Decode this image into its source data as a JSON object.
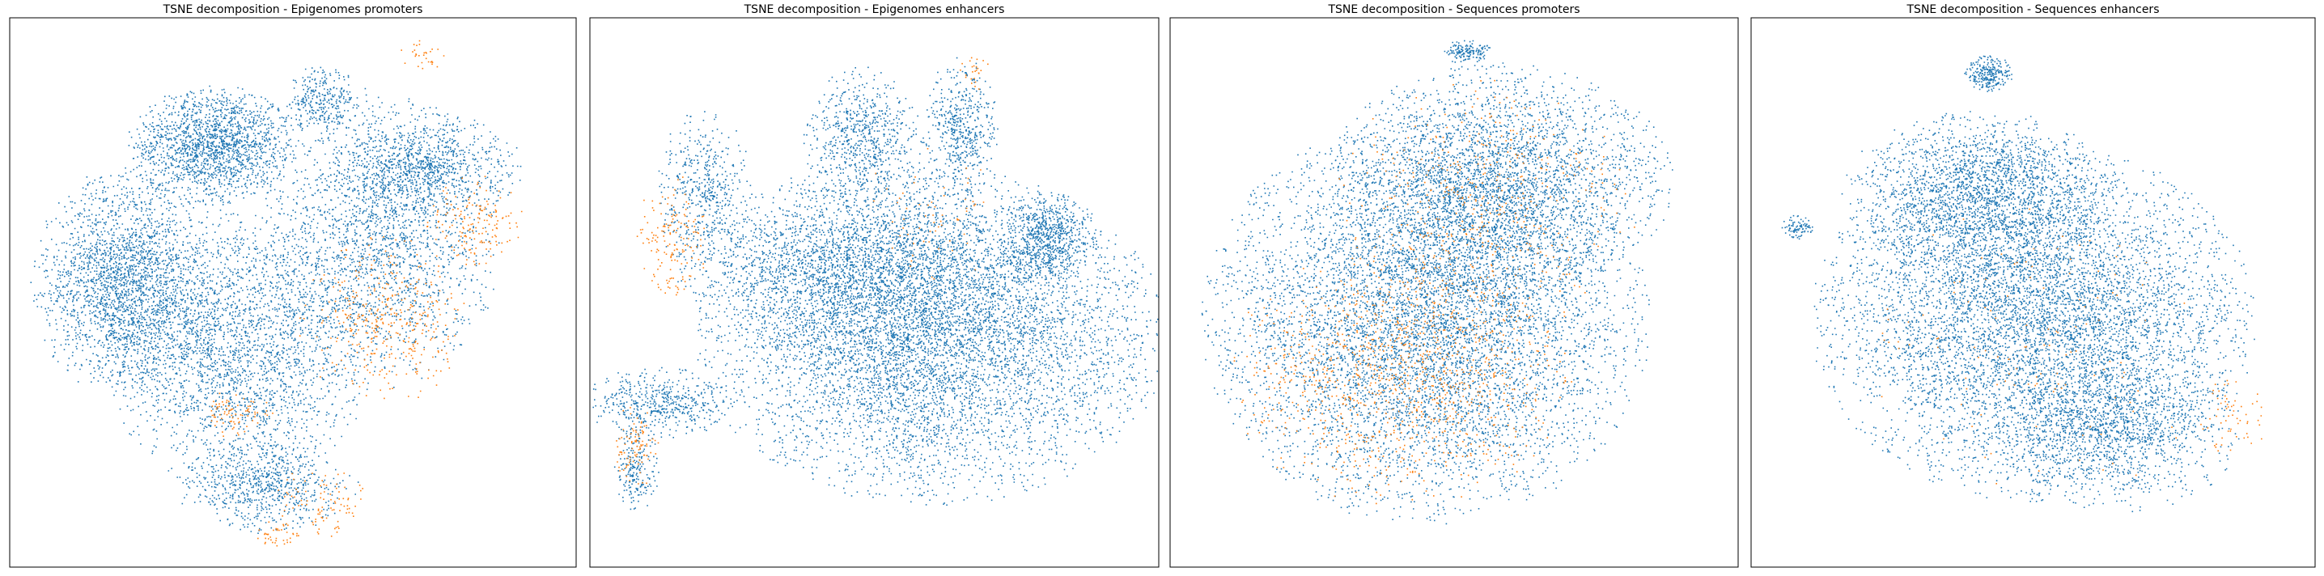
{
  "figure": {
    "colors": {
      "blue": "#1f77b4",
      "orange": "#ff7f0e"
    }
  },
  "chart_data": [
    {
      "type": "scatter",
      "title": "TSNE decomposition - Epigenomes promoters",
      "xlabel": "",
      "ylabel": "",
      "xlim": [
        0,
        1
      ],
      "ylim": [
        0,
        1
      ],
      "ticks": false,
      "grid": false,
      "legend": "none",
      "series": [
        {
          "color": "#1f77b4",
          "note_points": "approximate density regions",
          "blobs": [
            {
              "cx": 0.36,
              "cy": 0.77,
              "rx": 0.14,
              "ry": 0.1,
              "n": 1700
            },
            {
              "cx": 0.2,
              "cy": 0.52,
              "rx": 0.15,
              "ry": 0.19,
              "n": 2300
            },
            {
              "cx": 0.4,
              "cy": 0.4,
              "rx": 0.22,
              "ry": 0.24,
              "n": 2500
            },
            {
              "cx": 0.65,
              "cy": 0.6,
              "rx": 0.2,
              "ry": 0.25,
              "n": 2000
            },
            {
              "cx": 0.73,
              "cy": 0.73,
              "rx": 0.16,
              "ry": 0.09,
              "n": 900
            },
            {
              "cx": 0.45,
              "cy": 0.15,
              "rx": 0.15,
              "ry": 0.08,
              "n": 700
            },
            {
              "cx": 0.55,
              "cy": 0.85,
              "rx": 0.06,
              "ry": 0.06,
              "n": 300
            }
          ]
        },
        {
          "color": "#ff7f0e",
          "blobs": [
            {
              "cx": 0.66,
              "cy": 0.45,
              "rx": 0.14,
              "ry": 0.14,
              "n": 380
            },
            {
              "cx": 0.82,
              "cy": 0.63,
              "rx": 0.08,
              "ry": 0.08,
              "n": 160
            },
            {
              "cx": 0.4,
              "cy": 0.28,
              "rx": 0.06,
              "ry": 0.04,
              "n": 80
            },
            {
              "cx": 0.55,
              "cy": 0.12,
              "rx": 0.08,
              "ry": 0.06,
              "n": 90
            },
            {
              "cx": 0.47,
              "cy": 0.06,
              "rx": 0.04,
              "ry": 0.03,
              "n": 40
            },
            {
              "cx": 0.73,
              "cy": 0.93,
              "rx": 0.04,
              "ry": 0.03,
              "n": 30
            }
          ]
        }
      ]
    },
    {
      "type": "scatter",
      "title": "TSNE decomposition - Epigenomes enhancers",
      "xlabel": "",
      "ylabel": "",
      "xlim": [
        0,
        1
      ],
      "ylim": [
        0,
        1
      ],
      "ticks": false,
      "grid": false,
      "legend": "none",
      "series": [
        {
          "color": "#1f77b4",
          "blobs": [
            {
              "cx": 0.6,
              "cy": 0.42,
              "rx": 0.38,
              "ry": 0.28,
              "n": 6500
            },
            {
              "cx": 0.45,
              "cy": 0.55,
              "rx": 0.28,
              "ry": 0.16,
              "n": 2000
            },
            {
              "cx": 0.48,
              "cy": 0.78,
              "rx": 0.1,
              "ry": 0.12,
              "n": 700
            },
            {
              "cx": 0.65,
              "cy": 0.8,
              "rx": 0.06,
              "ry": 0.12,
              "n": 500
            },
            {
              "cx": 0.2,
              "cy": 0.68,
              "rx": 0.08,
              "ry": 0.14,
              "n": 500
            },
            {
              "cx": 0.8,
              "cy": 0.6,
              "rx": 0.08,
              "ry": 0.08,
              "n": 700
            },
            {
              "cx": 0.12,
              "cy": 0.3,
              "rx": 0.12,
              "ry": 0.06,
              "n": 500
            },
            {
              "cx": 0.08,
              "cy": 0.18,
              "rx": 0.04,
              "ry": 0.07,
              "n": 200
            }
          ]
        },
        {
          "color": "#ff7f0e",
          "blobs": [
            {
              "cx": 0.14,
              "cy": 0.6,
              "rx": 0.06,
              "ry": 0.12,
              "n": 150
            },
            {
              "cx": 0.08,
              "cy": 0.22,
              "rx": 0.04,
              "ry": 0.07,
              "n": 90
            },
            {
              "cx": 0.6,
              "cy": 0.65,
              "rx": 0.12,
              "ry": 0.12,
              "n": 60
            },
            {
              "cx": 0.67,
              "cy": 0.9,
              "rx": 0.03,
              "ry": 0.04,
              "n": 25
            }
          ]
        }
      ]
    },
    {
      "type": "scatter",
      "title": "TSNE decomposition - Sequences promoters",
      "xlabel": "",
      "ylabel": "",
      "xlim": [
        0,
        1
      ],
      "ylim": [
        0,
        1
      ],
      "ticks": false,
      "grid": false,
      "legend": "none",
      "series": [
        {
          "color": "#1f77b4",
          "blobs": [
            {
              "cx": 0.45,
              "cy": 0.45,
              "rx": 0.36,
              "ry": 0.34,
              "n": 7000
            },
            {
              "cx": 0.58,
              "cy": 0.7,
              "rx": 0.28,
              "ry": 0.2,
              "n": 3000
            },
            {
              "cx": 0.52,
              "cy": 0.94,
              "rx": 0.04,
              "ry": 0.02,
              "n": 150
            }
          ]
        },
        {
          "color": "#ff7f0e",
          "blobs": [
            {
              "cx": 0.4,
              "cy": 0.35,
              "rx": 0.28,
              "ry": 0.22,
              "n": 1000
            },
            {
              "cx": 0.55,
              "cy": 0.65,
              "rx": 0.25,
              "ry": 0.22,
              "n": 450
            }
          ]
        }
      ]
    },
    {
      "type": "scatter",
      "title": "TSNE decomposition - Sequences enhancers",
      "xlabel": "",
      "ylabel": "",
      "xlim": [
        0,
        1
      ],
      "ylim": [
        0,
        1
      ],
      "ticks": false,
      "grid": false,
      "legend": "none",
      "series": [
        {
          "color": "#1f77b4",
          "blobs": [
            {
              "cx": 0.5,
              "cy": 0.45,
              "rx": 0.36,
              "ry": 0.3,
              "n": 6500
            },
            {
              "cx": 0.4,
              "cy": 0.68,
              "rx": 0.22,
              "ry": 0.14,
              "n": 2000
            },
            {
              "cx": 0.42,
              "cy": 0.9,
              "rx": 0.04,
              "ry": 0.03,
              "n": 250
            },
            {
              "cx": 0.08,
              "cy": 0.62,
              "rx": 0.03,
              "ry": 0.02,
              "n": 90
            },
            {
              "cx": 0.65,
              "cy": 0.25,
              "rx": 0.2,
              "ry": 0.14,
              "n": 1200
            }
          ]
        },
        {
          "color": "#ff7f0e",
          "blobs": [
            {
              "cx": 0.5,
              "cy": 0.4,
              "rx": 0.32,
              "ry": 0.26,
              "n": 120
            },
            {
              "cx": 0.85,
              "cy": 0.28,
              "rx": 0.06,
              "ry": 0.08,
              "n": 60
            }
          ]
        }
      ]
    }
  ]
}
